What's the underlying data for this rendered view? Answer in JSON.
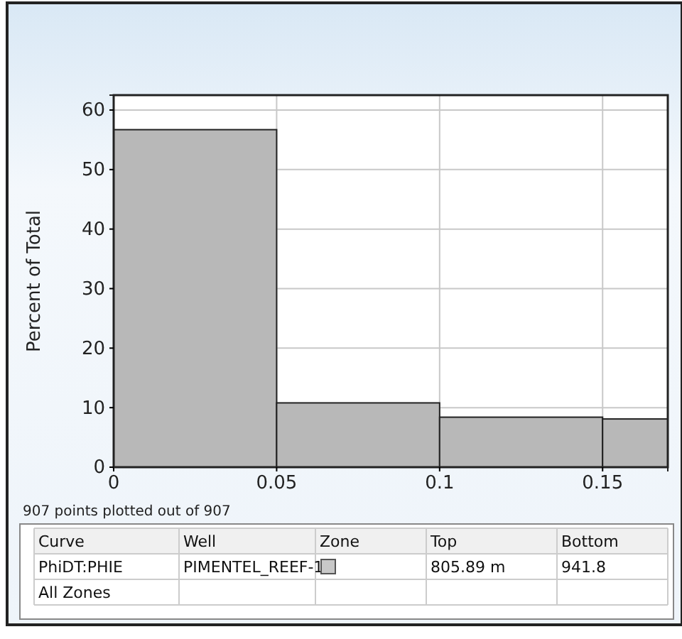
{
  "chart_data": {
    "type": "histogram",
    "ylabel": "Percent of Total",
    "bins": [
      0,
      0.05,
      0.1,
      0.15,
      0.2
    ],
    "values": [
      56.7,
      10.8,
      8.4,
      8.1
    ],
    "color": "#b8b8b8",
    "xlim": [
      0,
      0.17
    ],
    "xticks": [
      0,
      0.05,
      0.1,
      0.15
    ],
    "ylim": [
      0,
      62.5
    ],
    "yticks": [
      0,
      10,
      20,
      30,
      40,
      50,
      60
    ],
    "grid": true,
    "annotations": [
      "907 points plotted out of 907",
      "Curve",
      "Well",
      "Zone",
      "Top",
      "Bottom",
      "PhiDT:PHIE",
      "PIMENTEL_REEF-1",
      "805.89 m",
      "941.8",
      "All Zones"
    ]
  }
}
